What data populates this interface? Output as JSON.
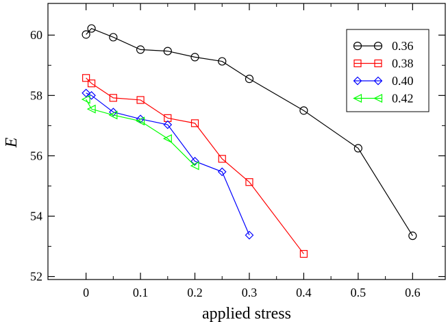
{
  "chart_data": {
    "type": "line",
    "title": "",
    "xlabel": "applied stress",
    "ylabel": "E",
    "xlim": [
      -0.07,
      0.66
    ],
    "ylim": [
      51.9,
      61.05
    ],
    "xticks": [
      0,
      0.1,
      0.2,
      0.3,
      0.4,
      0.5,
      0.6
    ],
    "xtick_labels": [
      "0",
      "0.1",
      "0.2",
      "0.3",
      "0.4",
      "0.5",
      "0.6"
    ],
    "yticks": [
      52,
      54,
      56,
      58,
      60
    ],
    "ytick_labels": [
      "52",
      "54",
      "56",
      "58",
      "60"
    ],
    "grid": false,
    "legend_position": "top-right",
    "series": [
      {
        "name": "0.36",
        "color": "#000000",
        "marker": "circle",
        "x": [
          0,
          0.01,
          0.05,
          0.1,
          0.15,
          0.2,
          0.25,
          0.3,
          0.4,
          0.5,
          0.6
        ],
        "y": [
          60.02,
          60.22,
          59.93,
          59.52,
          59.47,
          59.27,
          59.13,
          58.55,
          57.5,
          56.25,
          53.35
        ]
      },
      {
        "name": "0.38",
        "color": "#ff0000",
        "marker": "square",
        "x": [
          0,
          0.01,
          0.05,
          0.1,
          0.15,
          0.2,
          0.25,
          0.3,
          0.4
        ],
        "y": [
          58.58,
          58.4,
          57.92,
          57.85,
          57.25,
          57.08,
          55.9,
          55.13,
          52.75
        ]
      },
      {
        "name": "0.40",
        "color": "#0000ff",
        "marker": "diamond",
        "x": [
          0,
          0.01,
          0.05,
          0.1,
          0.15,
          0.2,
          0.25,
          0.3
        ],
        "y": [
          58.08,
          58.0,
          57.45,
          57.22,
          57.03,
          55.82,
          55.47,
          53.37
        ]
      },
      {
        "name": "0.42",
        "color": "#00ff00",
        "marker": "triangle-left",
        "x": [
          0,
          0.01,
          0.05,
          0.1,
          0.15,
          0.2
        ],
        "y": [
          57.87,
          57.55,
          57.35,
          57.15,
          56.57,
          55.67
        ]
      }
    ]
  }
}
